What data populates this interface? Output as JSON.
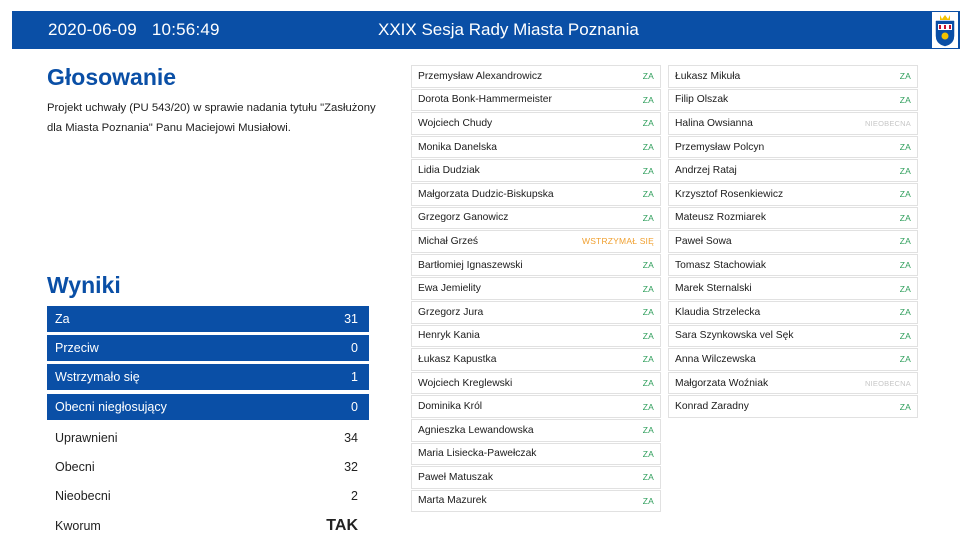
{
  "header": {
    "date": "2020-06-09",
    "time": "10:56:49",
    "session_title": "XXIX Sesja Rady Miasta Poznania",
    "crest_icon": "poznan-coat-of-arms-icon"
  },
  "voting": {
    "heading": "Głosowanie",
    "description": "Projekt uchwały (PU 543/20) w sprawie nadania tytułu \"Zasłużony dla Miasta Poznania\" Panu Maciejowi Musiałowi."
  },
  "results": {
    "heading": "Wyniki",
    "rows": [
      {
        "label": "Za",
        "value": "31",
        "style": "blue"
      },
      {
        "label": "Przeciw",
        "value": "0",
        "style": "blue"
      },
      {
        "label": "Wstrzymało się",
        "value": "1",
        "style": "blue"
      },
      {
        "label": "Obecni niegłosujący",
        "value": "0",
        "style": "blue"
      },
      {
        "label": "Uprawnieni",
        "value": "34",
        "style": "plain"
      },
      {
        "label": "Obecni",
        "value": "32",
        "style": "plain"
      },
      {
        "label": "Nieobecni",
        "value": "2",
        "style": "plain"
      },
      {
        "label": "Kworum",
        "value": "TAK",
        "style": "plain big"
      }
    ]
  },
  "members_left": [
    {
      "name": "Przemysław Alexandrowicz",
      "vote": "ZA"
    },
    {
      "name": "Dorota Bonk-Hammermeister",
      "vote": "ZA"
    },
    {
      "name": "Wojciech Chudy",
      "vote": "ZA"
    },
    {
      "name": "Monika Danelska",
      "vote": "ZA"
    },
    {
      "name": "Lidia Dudziak",
      "vote": "ZA"
    },
    {
      "name": "Małgorzata Dudzic-Biskupska",
      "vote": "ZA"
    },
    {
      "name": "Grzegorz Ganowicz",
      "vote": "ZA"
    },
    {
      "name": "Michał Grześ",
      "vote": "WSTRZYMAŁ SIĘ"
    },
    {
      "name": "Bartłomiej Ignaszewski",
      "vote": "ZA"
    },
    {
      "name": "Ewa Jemielity",
      "vote": "ZA"
    },
    {
      "name": "Grzegorz Jura",
      "vote": "ZA"
    },
    {
      "name": "Henryk Kania",
      "vote": "ZA"
    },
    {
      "name": "Łukasz Kapustka",
      "vote": "ZA"
    },
    {
      "name": "Wojciech Kreglewski",
      "vote": "ZA"
    },
    {
      "name": "Dominika Król",
      "vote": "ZA"
    },
    {
      "name": "Agnieszka Lewandowska",
      "vote": "ZA"
    },
    {
      "name": "Maria Lisiecka-Pawełczak",
      "vote": "ZA"
    },
    {
      "name": "Paweł Matuszak",
      "vote": "ZA"
    },
    {
      "name": "Marta Mazurek",
      "vote": "ZA"
    }
  ],
  "members_right": [
    {
      "name": "Łukasz Mikuła",
      "vote": "ZA"
    },
    {
      "name": "Filip Olszak",
      "vote": "ZA"
    },
    {
      "name": "Halina Owsianna",
      "vote": "NIEOBECNA"
    },
    {
      "name": "Przemysław Polcyn",
      "vote": "ZA"
    },
    {
      "name": "Andrzej Rataj",
      "vote": "ZA"
    },
    {
      "name": "Krzysztof Rosenkiewicz",
      "vote": "ZA"
    },
    {
      "name": "Mateusz Rozmiarek",
      "vote": "ZA"
    },
    {
      "name": "Paweł Sowa",
      "vote": "ZA"
    },
    {
      "name": "Tomasz Stachowiak",
      "vote": "ZA"
    },
    {
      "name": "Marek Sternalski",
      "vote": "ZA"
    },
    {
      "name": "Klaudia Strzelecka",
      "vote": "ZA"
    },
    {
      "name": "Sara Szynkowska vel Sęk",
      "vote": "ZA"
    },
    {
      "name": "Anna Wilczewska",
      "vote": "ZA"
    },
    {
      "name": "Małgorzata Woźniak",
      "vote": "NIEOBECNA"
    },
    {
      "name": "Konrad Zaradny",
      "vote": "ZA"
    }
  ],
  "colors": {
    "accent": "#0a4fa6",
    "vote_za": "#2e9e5b",
    "vote_abstain": "#f0a030",
    "vote_absent": "#c7c7c7"
  }
}
